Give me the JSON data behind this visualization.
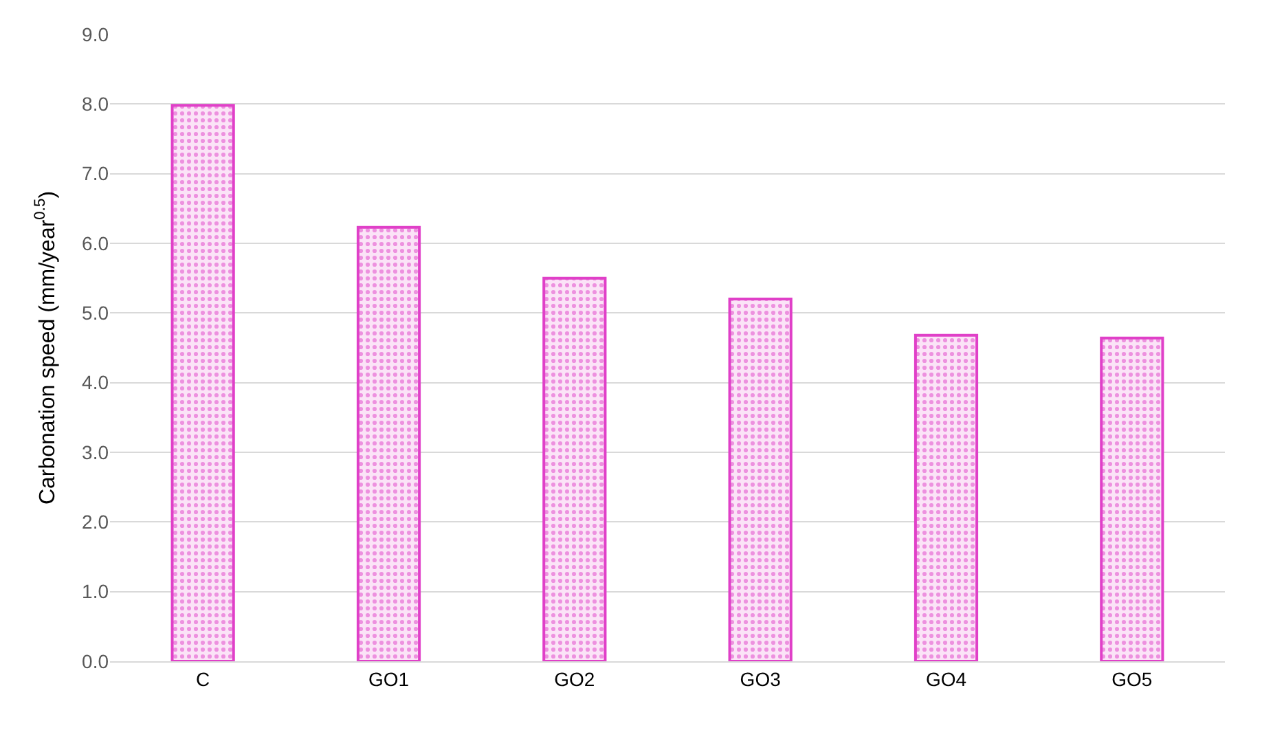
{
  "chart_data": {
    "type": "bar",
    "ylabel": "Carbonation speed (mm/year$^{0.5}$)",
    "categories": [
      "C",
      "GO1",
      "GO2",
      "GO3",
      "GO4",
      "GO5"
    ],
    "values": [
      7.98,
      6.23,
      5.5,
      5.2,
      4.68,
      4.64
    ],
    "color": "#e040c8",
    "ylim": [
      0,
      9
    ],
    "yticks": [
      {
        "value": 0,
        "label": "0.0"
      },
      {
        "value": 1,
        "label": "1.0"
      },
      {
        "value": 2,
        "label": "2.0"
      },
      {
        "value": 3,
        "label": "3.0"
      },
      {
        "value": 4,
        "label": "4.0"
      },
      {
        "value": 5,
        "label": "5.0"
      },
      {
        "value": 6,
        "label": "6.0"
      },
      {
        "value": 7,
        "label": "7.0"
      },
      {
        "value": 8,
        "label": "8.0"
      },
      {
        "value": 9,
        "label": "9.0"
      }
    ],
    "grid": "y",
    "legend": false
  }
}
